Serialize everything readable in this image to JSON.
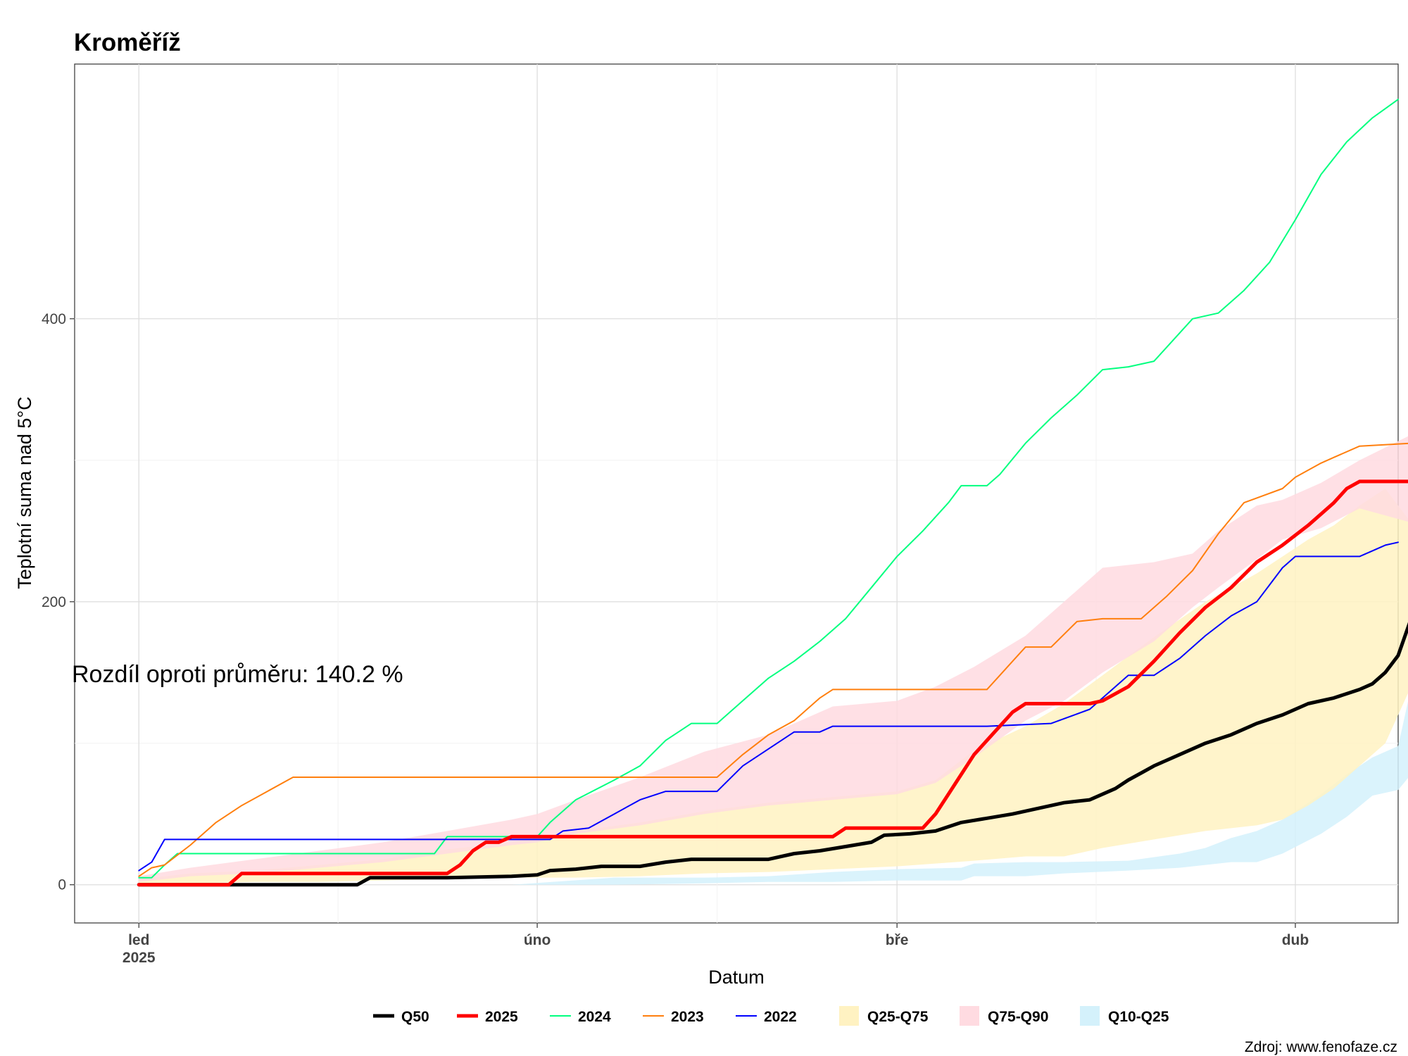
{
  "chart_data": {
    "type": "line",
    "title": "Kroměříž",
    "xlabel": "Datum",
    "ylabel": "Teplotní suma nad 5°C",
    "annotation": "Rozdíl oproti průměru: 140.2 %",
    "source": "Zdroj: www.fenofaze.cz",
    "x_ticks": [
      {
        "day": 1,
        "label": "led",
        "sublabel": "2025"
      },
      {
        "day": 32,
        "label": "úno",
        "sublabel": ""
      },
      {
        "day": 60,
        "label": "bře",
        "sublabel": ""
      },
      {
        "day": 91,
        "label": "dub",
        "sublabel": ""
      }
    ],
    "y_ticks": [
      0,
      200,
      400
    ],
    "xlim": [
      -4,
      99
    ],
    "ylim": [
      -27,
      580
    ],
    "grid": true,
    "legend_position": "bottom",
    "bands": [
      {
        "name": "Q10-Q25",
        "color": "#d4f1fb",
        "points": [
          [
            1,
            0,
            0
          ],
          [
            10,
            0,
            0
          ],
          [
            20,
            0,
            0
          ],
          [
            30,
            0,
            0
          ],
          [
            38,
            0,
            5
          ],
          [
            45,
            1,
            5
          ],
          [
            50,
            2,
            6
          ],
          [
            55,
            2,
            9
          ],
          [
            60,
            3,
            11
          ],
          [
            65,
            3,
            12
          ],
          [
            66,
            6,
            15
          ],
          [
            70,
            6,
            16
          ],
          [
            73,
            8,
            16
          ],
          [
            78,
            10,
            17
          ],
          [
            82,
            12,
            22
          ],
          [
            84,
            14,
            26
          ],
          [
            86,
            16,
            33
          ],
          [
            88,
            16,
            38
          ],
          [
            90,
            22,
            46
          ],
          [
            93,
            36,
            64
          ],
          [
            95,
            48,
            78
          ],
          [
            97,
            63,
            90
          ],
          [
            99,
            67,
            98
          ],
          [
            100,
            78,
            139
          ]
        ]
      },
      {
        "name": "Q25-Q75",
        "color": "#fff2c2",
        "points": [
          [
            1,
            0,
            4
          ],
          [
            5,
            1,
            8
          ],
          [
            10,
            2,
            10
          ],
          [
            15,
            2,
            14
          ],
          [
            20,
            3,
            18
          ],
          [
            25,
            4,
            25
          ],
          [
            30,
            5,
            30
          ],
          [
            35,
            5,
            38
          ],
          [
            40,
            6,
            44
          ],
          [
            45,
            8,
            52
          ],
          [
            50,
            9,
            58
          ],
          [
            55,
            11,
            62
          ],
          [
            60,
            13,
            66
          ],
          [
            63,
            15,
            74
          ],
          [
            66,
            17,
            95
          ],
          [
            70,
            20,
            112
          ],
          [
            73,
            20,
            128
          ],
          [
            76,
            26,
            148
          ],
          [
            80,
            32,
            175
          ],
          [
            84,
            38,
            200
          ],
          [
            86,
            40,
            210
          ],
          [
            88,
            42,
            220
          ],
          [
            90,
            46,
            232
          ],
          [
            92,
            56,
            244
          ],
          [
            94,
            68,
            254
          ],
          [
            96,
            84,
            268
          ],
          [
            98,
            100,
            280
          ],
          [
            100,
            140,
            256
          ]
        ]
      },
      {
        "name": "Q75-Q90",
        "color": "#ffdbe1",
        "points": [
          [
            1,
            2,
            6
          ],
          [
            5,
            6,
            12
          ],
          [
            10,
            8,
            18
          ],
          [
            15,
            12,
            24
          ],
          [
            20,
            16,
            30
          ],
          [
            25,
            22,
            38
          ],
          [
            30,
            28,
            46
          ],
          [
            32,
            30,
            50
          ],
          [
            35,
            36,
            60
          ],
          [
            40,
            42,
            76
          ],
          [
            45,
            50,
            94
          ],
          [
            50,
            56,
            106
          ],
          [
            55,
            60,
            126
          ],
          [
            60,
            64,
            130
          ],
          [
            63,
            72,
            140
          ],
          [
            66,
            90,
            154
          ],
          [
            70,
            116,
            176
          ],
          [
            73,
            130,
            200
          ],
          [
            76,
            150,
            224
          ],
          [
            80,
            172,
            228
          ],
          [
            83,
            196,
            234
          ],
          [
            85,
            210,
            250
          ],
          [
            88,
            230,
            268
          ],
          [
            90,
            244,
            272
          ],
          [
            93,
            252,
            284
          ],
          [
            96,
            266,
            300
          ],
          [
            100,
            256,
            318
          ]
        ]
      }
    ],
    "series": [
      {
        "name": "Q50",
        "color": "#000000",
        "width": 5,
        "points": [
          [
            1,
            0
          ],
          [
            10,
            0
          ],
          [
            18,
            0
          ],
          [
            19,
            5
          ],
          [
            25,
            5
          ],
          [
            30,
            6
          ],
          [
            32,
            7
          ],
          [
            33,
            10
          ],
          [
            35,
            11
          ],
          [
            37,
            13
          ],
          [
            40,
            13
          ],
          [
            42,
            16
          ],
          [
            44,
            18
          ],
          [
            47,
            18
          ],
          [
            50,
            18
          ],
          [
            52,
            22
          ],
          [
            54,
            24
          ],
          [
            56,
            27
          ],
          [
            58,
            30
          ],
          [
            59,
            35
          ],
          [
            61,
            36
          ],
          [
            63,
            38
          ],
          [
            65,
            44
          ],
          [
            67,
            47
          ],
          [
            69,
            50
          ],
          [
            71,
            54
          ],
          [
            73,
            58
          ],
          [
            75,
            60
          ],
          [
            77,
            68
          ],
          [
            78,
            74
          ],
          [
            79,
            79
          ],
          [
            80,
            84
          ],
          [
            82,
            92
          ],
          [
            84,
            100
          ],
          [
            86,
            106
          ],
          [
            88,
            114
          ],
          [
            90,
            120
          ],
          [
            92,
            128
          ],
          [
            94,
            132
          ],
          [
            96,
            138
          ],
          [
            97,
            142
          ],
          [
            98,
            150
          ],
          [
            99,
            162
          ],
          [
            100,
            188
          ]
        ]
      },
      {
        "name": "2025",
        "color": "#ff0000",
        "width": 5,
        "points": [
          [
            1,
            0
          ],
          [
            8,
            0
          ],
          [
            9,
            8
          ],
          [
            25,
            8
          ],
          [
            26,
            14
          ],
          [
            27,
            24
          ],
          [
            28,
            30
          ],
          [
            29,
            30
          ],
          [
            30,
            34
          ],
          [
            55,
            34
          ],
          [
            56,
            40
          ],
          [
            62,
            40
          ],
          [
            63,
            50
          ],
          [
            64,
            64
          ],
          [
            65,
            78
          ],
          [
            66,
            92
          ],
          [
            68,
            112
          ],
          [
            69,
            122
          ],
          [
            70,
            128
          ],
          [
            72,
            128
          ],
          [
            75,
            128
          ],
          [
            76,
            130
          ],
          [
            78,
            140
          ],
          [
            80,
            158
          ],
          [
            82,
            178
          ],
          [
            84,
            196
          ],
          [
            86,
            210
          ],
          [
            88,
            228
          ],
          [
            90,
            240
          ],
          [
            92,
            254
          ],
          [
            94,
            270
          ],
          [
            95,
            280
          ],
          [
            96,
            285
          ],
          [
            100,
            285
          ]
        ]
      },
      {
        "name": "2024",
        "color": "#00ff7f",
        "width": 2,
        "points": [
          [
            1,
            5
          ],
          [
            2,
            5
          ],
          [
            3,
            14
          ],
          [
            4,
            22
          ],
          [
            24,
            22
          ],
          [
            25,
            34
          ],
          [
            32,
            34
          ],
          [
            33,
            44
          ],
          [
            35,
            60
          ],
          [
            38,
            74
          ],
          [
            40,
            84
          ],
          [
            42,
            102
          ],
          [
            44,
            114
          ],
          [
            46,
            114
          ],
          [
            48,
            130
          ],
          [
            50,
            146
          ],
          [
            52,
            158
          ],
          [
            54,
            172
          ],
          [
            56,
            188
          ],
          [
            58,
            210
          ],
          [
            60,
            232
          ],
          [
            62,
            250
          ],
          [
            64,
            270
          ],
          [
            65,
            282
          ],
          [
            67,
            282
          ],
          [
            68,
            290
          ],
          [
            70,
            312
          ],
          [
            72,
            330
          ],
          [
            74,
            346
          ],
          [
            76,
            364
          ],
          [
            78,
            366
          ],
          [
            80,
            370
          ],
          [
            82,
            390
          ],
          [
            83,
            400
          ],
          [
            85,
            404
          ],
          [
            87,
            420
          ],
          [
            89,
            440
          ],
          [
            91,
            470
          ],
          [
            93,
            502
          ],
          [
            95,
            525
          ],
          [
            97,
            542
          ],
          [
            99,
            555
          ]
        ]
      },
      {
        "name": "2023",
        "color": "#ff7f0e",
        "width": 2,
        "points": [
          [
            1,
            6
          ],
          [
            2,
            12
          ],
          [
            3,
            14
          ],
          [
            5,
            28
          ],
          [
            7,
            44
          ],
          [
            9,
            56
          ],
          [
            11,
            66
          ],
          [
            13,
            76
          ],
          [
            46,
            76
          ],
          [
            48,
            92
          ],
          [
            50,
            106
          ],
          [
            52,
            116
          ],
          [
            54,
            132
          ],
          [
            55,
            138
          ],
          [
            67,
            138
          ],
          [
            68,
            148
          ],
          [
            69,
            158
          ],
          [
            70,
            168
          ],
          [
            72,
            168
          ],
          [
            74,
            186
          ],
          [
            76,
            188
          ],
          [
            79,
            188
          ],
          [
            81,
            204
          ],
          [
            83,
            222
          ],
          [
            85,
            248
          ],
          [
            87,
            270
          ],
          [
            90,
            280
          ],
          [
            91,
            288
          ],
          [
            93,
            298
          ],
          [
            94,
            302
          ],
          [
            96,
            310
          ],
          [
            100,
            312
          ]
        ]
      },
      {
        "name": "2022",
        "color": "#0000ff",
        "width": 2,
        "points": [
          [
            1,
            10
          ],
          [
            2,
            16
          ],
          [
            3,
            32
          ],
          [
            33,
            32
          ],
          [
            34,
            38
          ],
          [
            36,
            40
          ],
          [
            38,
            50
          ],
          [
            40,
            60
          ],
          [
            42,
            66
          ],
          [
            46,
            66
          ],
          [
            48,
            84
          ],
          [
            50,
            96
          ],
          [
            52,
            108
          ],
          [
            54,
            108
          ],
          [
            55,
            112
          ],
          [
            67,
            112
          ],
          [
            72,
            114
          ],
          [
            75,
            124
          ],
          [
            78,
            148
          ],
          [
            80,
            148
          ],
          [
            82,
            160
          ],
          [
            84,
            176
          ],
          [
            86,
            190
          ],
          [
            88,
            200
          ],
          [
            89,
            212
          ],
          [
            90,
            224
          ],
          [
            91,
            232
          ],
          [
            96,
            232
          ],
          [
            97,
            236
          ],
          [
            98,
            240
          ],
          [
            99,
            242
          ]
        ]
      }
    ],
    "legend": {
      "lines": [
        "Q50",
        "2025",
        "2024",
        "2023",
        "2022"
      ],
      "fills": [
        "Q25-Q75",
        "Q75-Q90",
        "Q10-Q25"
      ]
    }
  }
}
